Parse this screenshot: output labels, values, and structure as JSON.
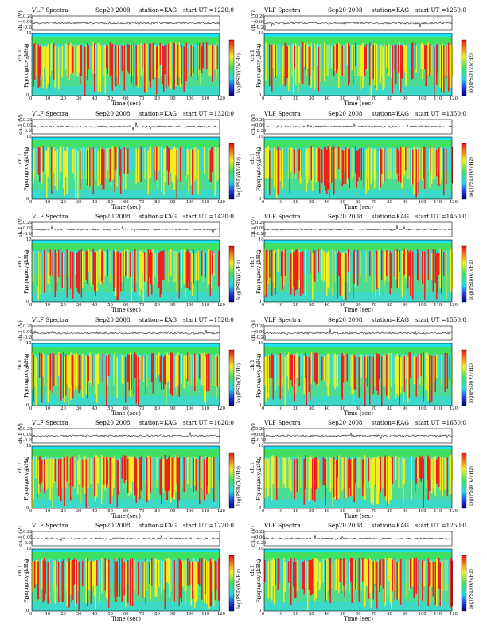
{
  "layout_labels": {
    "ch1_label": "ch.1 (V)",
    "ch1_short": "ch.1",
    "freq_label": "Frequency (kHz)",
    "time_label": "Time (sec)",
    "cbar_label": "log(PSD/(V/√Hz)",
    "upper_ticks": [
      "0.20",
      "0.00",
      "-0.20"
    ],
    "freq_ticks": [
      "0",
      "2",
      "4",
      "6",
      "8",
      "10"
    ],
    "time_ticks": [
      "0",
      "10",
      "20",
      "30",
      "40",
      "50",
      "60",
      "70",
      "80",
      "90",
      "100",
      "110",
      "120"
    ]
  },
  "colors": {
    "bg_low": "#3cd8c8",
    "band_green": "#40e060",
    "mid_yellow": "#f0f020",
    "high_red": "#ee2020",
    "cyan_top": "#20e0f0"
  },
  "chart_data": [
    {
      "type": "heatmap",
      "title": "VLF Spectra",
      "date": "Sep20 2008",
      "station": "station=KAG",
      "start": "start  UT =1220:0",
      "xlabel": "Time (sec)",
      "ylabel": "Frequency (kHz)",
      "xlim": [
        0,
        120
      ],
      "ylim": [
        0,
        10
      ],
      "colorbar_label": "log(PSD/(V/√Hz)",
      "upper_ylabel": "ch.1 (V)",
      "upper_ylim": [
        -0.2,
        0.2
      ]
    },
    {
      "type": "heatmap",
      "title": "VLF Spectra",
      "date": "Sep20 2008",
      "station": "station=KAG",
      "start": "start  UT =1250:0",
      "xlabel": "Time (sec)",
      "ylabel": "Frequency (kHz)",
      "xlim": [
        0,
        120
      ],
      "ylim": [
        0,
        10
      ],
      "colorbar_label": "log(PSD/(V/√Hz)",
      "upper_ylabel": "ch.1 (V)",
      "upper_ylim": [
        -0.2,
        0.2
      ]
    },
    {
      "type": "heatmap",
      "title": "VLF Spectra",
      "date": "Sep20 2008",
      "station": "station=KAG",
      "start": "start  UT =1320:0",
      "xlabel": "Time (sec)",
      "ylabel": "Frequency (kHz)",
      "xlim": [
        0,
        120
      ],
      "ylim": [
        0,
        10
      ],
      "colorbar_label": "log(PSD/(V/√Hz)",
      "upper_ylabel": "ch.1 (V)",
      "upper_ylim": [
        -0.2,
        0.2
      ]
    },
    {
      "type": "heatmap",
      "title": "VLF Spectra",
      "date": "Sep20 2008",
      "station": "station=KAG",
      "start": "start  UT =1350:0",
      "xlabel": "Time (sec)",
      "ylabel": "Frequency (kHz)",
      "xlim": [
        0,
        120
      ],
      "ylim": [
        0,
        10
      ],
      "colorbar_label": "log(PSD/(V/√Hz)",
      "upper_ylabel": "ch.1 (V)",
      "upper_ylim": [
        -0.2,
        0.2
      ]
    },
    {
      "type": "heatmap",
      "title": "VLF Spectra",
      "date": "Sep20 2008",
      "station": "station=KAG",
      "start": "start  UT =1420:0",
      "xlabel": "Time (sec)",
      "ylabel": "Frequency (kHz)",
      "xlim": [
        0,
        120
      ],
      "ylim": [
        0,
        10
      ],
      "colorbar_label": "log(PSD/(V/√Hz)",
      "upper_ylabel": "ch.1 (V)",
      "upper_ylim": [
        -0.2,
        0.2
      ]
    },
    {
      "type": "heatmap",
      "title": "VLF Spectra",
      "date": "Sep20 2008",
      "station": "station=KAG",
      "start": "start  UT =1450:0",
      "xlabel": "Time (sec)",
      "ylabel": "Frequency (kHz)",
      "xlim": [
        0,
        120
      ],
      "ylim": [
        0,
        10
      ],
      "colorbar_label": "log(PSD/(V/√Hz)",
      "upper_ylabel": "ch.1 (V)",
      "upper_ylim": [
        -0.2,
        0.2
      ]
    },
    {
      "type": "heatmap",
      "title": "VLF Spectra",
      "date": "Sep20 2008",
      "station": "station=KAG",
      "start": "start  UT =1520:0",
      "xlabel": "Time (sec)",
      "ylabel": "Frequency (kHz)",
      "xlim": [
        0,
        120
      ],
      "ylim": [
        0,
        10
      ],
      "colorbar_label": "log(PSD/(V/√Hz)",
      "upper_ylabel": "ch.1 (V)",
      "upper_ylim": [
        -0.2,
        0.2
      ]
    },
    {
      "type": "heatmap",
      "title": "VLF Spectra",
      "date": "Sep20 2008",
      "station": "station=KAG",
      "start": "start  UT =1550:0",
      "xlabel": "Time (sec)",
      "ylabel": "Frequency (kHz)",
      "xlim": [
        0,
        120
      ],
      "ylim": [
        0,
        10
      ],
      "colorbar_label": "log(PSD/(V/√Hz)",
      "upper_ylabel": "ch.1 (V)",
      "upper_ylim": [
        -0.2,
        0.2
      ]
    },
    {
      "type": "heatmap",
      "title": "VLF Spectra",
      "date": "Sep20 2008",
      "station": "station=KAG",
      "start": "start  UT =1620:0",
      "xlabel": "Time (sec)",
      "ylabel": "Frequency (kHz)",
      "xlim": [
        0,
        120
      ],
      "ylim": [
        0,
        10
      ],
      "colorbar_label": "log(PSD/(V/√Hz)",
      "upper_ylabel": "ch.1 (V)",
      "upper_ylim": [
        -0.2,
        0.2
      ]
    },
    {
      "type": "heatmap",
      "title": "VLF Spectra",
      "date": "Sep20 2008",
      "station": "station=KAG",
      "start": "start  UT =1650:0",
      "xlabel": "Time (sec)",
      "ylabel": "Frequency (kHz)",
      "xlim": [
        0,
        120
      ],
      "ylim": [
        0,
        10
      ],
      "colorbar_label": "log(PSD/(V/√Hz)",
      "upper_ylabel": "ch.1 (V)",
      "upper_ylim": [
        -0.2,
        0.2
      ]
    },
    {
      "type": "heatmap",
      "title": "VLF Spectra",
      "date": "Sep20 2008",
      "station": "station=KAG",
      "start": "start  UT =1720:0",
      "xlabel": "Time (sec)",
      "ylabel": "Frequency (kHz)",
      "xlim": [
        0,
        120
      ],
      "ylim": [
        0,
        10
      ],
      "colorbar_label": "log(PSD/(V/√Hz)",
      "upper_ylabel": "ch.1 (V)",
      "upper_ylim": [
        -0.2,
        0.2
      ]
    },
    {
      "type": "heatmap",
      "title": "VLF Spectra",
      "date": "Sep20 2008",
      "station": "station=KAG",
      "start": "start  UT =1250:0",
      "xlabel": "Time (sec)",
      "ylabel": "Frequency (kHz)",
      "xlim": [
        0,
        120
      ],
      "ylim": [
        0,
        10
      ],
      "colorbar_label": "log(PSD/(V/√Hz)",
      "upper_ylabel": "ch.1 (V)",
      "upper_ylim": [
        -0.2,
        0.2
      ]
    }
  ]
}
